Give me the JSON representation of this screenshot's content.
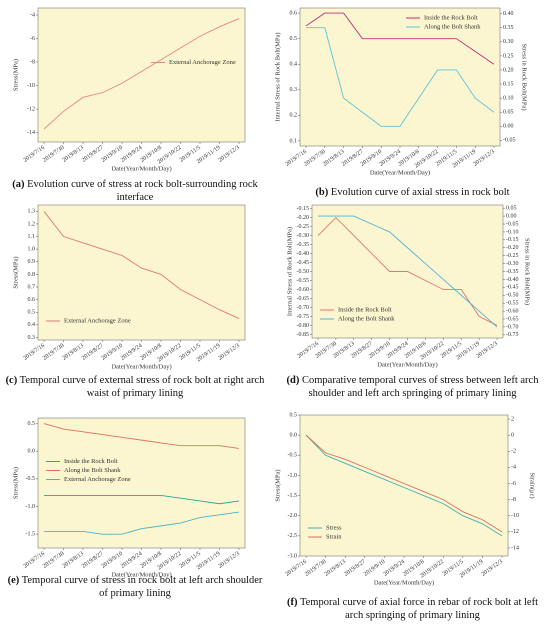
{
  "chart_data": [
    {
      "type": "line",
      "caption_label": "(a)",
      "caption": "Evolution curve of stress at rock bolt-surrounding rock interface",
      "x_label": "Date(Year/Month/Day)",
      "y_label": "Stress(MPa)",
      "categories": [
        "2019/7/16",
        "2019/7/30",
        "2019/8/13",
        "2019/8/27",
        "2019/9/10",
        "2019/9/24",
        "2019/10/8",
        "2019/10/22",
        "2019/11/5",
        "2019/11/19",
        "2019/12/3"
      ],
      "series": [
        {
          "name": "External Anchorage Zone",
          "color": "#e8877a",
          "values": [
            -13.7,
            -12.2,
            -11.0,
            -10.6,
            -9.8,
            -8.8,
            -7.8,
            -6.8,
            -5.8,
            -5.0,
            -4.3
          ]
        }
      ],
      "ylim": [
        -14.8,
        -3.4
      ],
      "yticks": [
        -14,
        -12,
        -10,
        -8,
        -6,
        -4
      ],
      "legend": "center right"
    },
    {
      "type": "line",
      "caption_label": "(b)",
      "caption": "Evolution curve of axial stress in rock bolt",
      "x_label": "Date(Year/Month/Day)",
      "y_label": "Internal Stress of Rock Bolt(MPa)",
      "y2_label": "Stress in Rock Bolt(MPa)",
      "categories": [
        "2019/7/16",
        "2019/7/30",
        "2019/8/13",
        "2019/8/27",
        "2019/9/10",
        "2019/9/24",
        "2019/10/8",
        "2019/10/22",
        "2019/11/5",
        "2019/11/19",
        "2019/12/3"
      ],
      "series": [
        {
          "name": "Inside the Rock Bolt",
          "color": "#c2307a",
          "values": [
            0.55,
            0.6,
            0.6,
            0.5,
            0.5,
            0.5,
            0.5,
            0.5,
            0.5,
            0.45,
            0.4
          ]
        },
        {
          "name": "Along the Bolt Shank",
          "color": "#5ec3dc",
          "axis": "y2",
          "values": [
            0.35,
            0.35,
            0.1,
            0.05,
            0.0,
            0.0,
            0.1,
            0.2,
            0.2,
            0.1,
            0.05
          ]
        }
      ],
      "ylim": [
        0.08,
        0.62
      ],
      "yticks": [
        0.1,
        0.2,
        0.3,
        0.4,
        0.5,
        0.6
      ],
      "y2lim": [
        -0.07,
        0.42
      ],
      "y2ticks": [
        -0.05,
        {
          "value": 0,
          "label": "0.00"
        },
        0.05,
        {
          "value": 0.1,
          "label": "0.10"
        },
        0.15,
        {
          "value": 0.2,
          "label": "0.20"
        },
        0.25,
        {
          "value": 0.3,
          "label": "0.30"
        },
        0.35,
        {
          "value": 0.4,
          "label": "0.40"
        }
      ],
      "legend": "upper right"
    },
    {
      "type": "line",
      "caption_label": "(c)",
      "caption": "Temporal curve of external stress of rock bolt at right arch waist of primary lining",
      "x_label": "Date(Year/Month/Day)",
      "y_label": "Stress(MPa)",
      "categories": [
        "2019/7/16",
        "2019/7/30",
        "2019/8/13",
        "2019/8/27",
        "2019/9/10",
        "2019/9/24",
        "2019/10/8",
        "2019/10/22",
        "2019/11/5",
        "2019/11/19",
        "2019/12/3"
      ],
      "series": [
        {
          "name": "External Anchorage Zone",
          "color": "#e27a6e",
          "values": [
            1.3,
            1.1,
            1.05,
            1.0,
            0.95,
            0.85,
            0.8,
            0.68,
            0.6,
            0.52,
            0.45
          ]
        }
      ],
      "ylim": [
        0.28,
        1.35
      ],
      "yticks": [
        0.3,
        0.4,
        0.5,
        0.6,
        0.7,
        0.8,
        0.9,
        {
          "value": 1,
          "label": "1.0"
        },
        1.1,
        1.2,
        1.3
      ],
      "legend": "lower left"
    },
    {
      "type": "line",
      "caption_label": "(d)",
      "caption": "Comparative temporal curves of stress between left arch shoulder and left arch springing of primary lining",
      "x_label": "Date(Year/Month/Day)",
      "y_label": "Internal Stress of Rock Bolt(MPa)",
      "y2_label": "Stress in Rock Bolt(MPa)",
      "categories": [
        "2019/7/16",
        "2019/7/30",
        "2019/8/13",
        "2019/8/27",
        "2019/9/10",
        "2019/9/24",
        "2019/10/8",
        "2019/10/22",
        "2019/11/5",
        "2019/11/19",
        "2019/12/3"
      ],
      "series": [
        {
          "name": "Inside the Rock Bolt",
          "color": "#e8736a",
          "values": [
            -0.3,
            -0.2,
            -0.3,
            -0.4,
            -0.5,
            -0.5,
            -0.55,
            -0.6,
            -0.6,
            -0.75,
            -0.8
          ]
        },
        {
          "name": "Along the Bolt Shank",
          "color": "#4fb3d9",
          "axis": "y2",
          "values": [
            0.0,
            0.0,
            0.0,
            -0.05,
            -0.1,
            -0.2,
            -0.3,
            -0.4,
            -0.5,
            -0.6,
            -0.7
          ]
        }
      ],
      "ylim": [
        -0.87,
        -0.13
      ],
      "yticks": [
        -0.85,
        {
          "value": -0.8,
          "label": "-0.80"
        },
        -0.75,
        {
          "value": -0.7,
          "label": "-0.70"
        },
        -0.65,
        {
          "value": -0.6,
          "label": "-0.60"
        },
        -0.55,
        {
          "value": -0.5,
          "label": "-0.50"
        },
        -0.45,
        {
          "value": -0.4,
          "label": "-0.40"
        },
        -0.35,
        {
          "value": -0.3,
          "label": "-0.30"
        },
        -0.25,
        {
          "value": -0.2,
          "label": "-0.20"
        },
        -0.15
      ],
      "y2lim": [
        -0.77,
        0.07
      ],
      "y2ticks": [
        -0.75,
        {
          "value": -0.7,
          "label": "-0.70"
        },
        -0.65,
        {
          "value": -0.6,
          "label": "-0.60"
        },
        -0.55,
        {
          "value": -0.5,
          "label": "-0.50"
        },
        -0.45,
        {
          "value": -0.4,
          "label": "-0.40"
        },
        -0.35,
        {
          "value": -0.3,
          "label": "-0.30"
        },
        -0.25,
        {
          "value": -0.2,
          "label": "-0.20"
        },
        -0.15,
        {
          "value": -0.1,
          "label": "-0.10"
        },
        -0.05,
        {
          "value": 0,
          "label": "0.00"
        },
        0.05
      ],
      "legend": "lower left"
    },
    {
      "type": "line",
      "caption_label": "(e)",
      "caption": "Temporal curve of stress in rock bolt at left arch shoulder of primary lining",
      "x_label": "Date(Year/Month/Day)",
      "y_label": "Stress(MPa)",
      "categories": [
        "2019/7/16",
        "2019/7/30",
        "2019/8/13",
        "2019/8/27",
        "2019/9/10",
        "2019/9/24",
        "2019/10/8",
        "2019/10/22",
        "2019/11/5",
        "2019/11/19",
        "2019/12/3"
      ],
      "series": [
        {
          "name": "Inside the Rock Bolt",
          "color": "#26a69a",
          "values": [
            -0.8,
            -0.8,
            -0.8,
            -0.8,
            -0.8,
            -0.8,
            -0.8,
            -0.85,
            -0.9,
            -0.95,
            -0.9
          ]
        },
        {
          "name": "Along the Bolt Shank",
          "color": "#e0705f",
          "values": [
            0.5,
            0.4,
            0.35,
            0.3,
            0.25,
            0.2,
            0.15,
            0.1,
            0.1,
            0.1,
            0.05
          ]
        },
        {
          "name": "External Anchorage Zone",
          "color": "#4fb0c6",
          "values": [
            -1.45,
            -1.45,
            -1.45,
            -1.5,
            -1.5,
            -1.4,
            -1.35,
            -1.3,
            -1.2,
            -1.15,
            -1.1
          ]
        }
      ],
      "ylim": [
        -1.75,
        0.6
      ],
      "yticks": [
        -1.5,
        {
          "value": -1,
          "label": "-1.0"
        },
        -0.5,
        {
          "value": 0,
          "label": "0.0"
        },
        0.5
      ],
      "legend": "center left"
    },
    {
      "type": "line",
      "caption_label": "(f)",
      "caption": "Temporal curve of axial force in rebar of rock bolt at left arch springing of primary lining",
      "x_label": "Date(Year/Month/Day)",
      "y_label": "Stress(MPa)",
      "y2_label": "Strain(με)",
      "categories": [
        "2019/7/16",
        "2019/7/30",
        "2019/8/13",
        "2019/8/27",
        "2019/9/10",
        "2019/9/24",
        "2019/10/8",
        "2019/10/22",
        "2019/11/5",
        "2019/11/19",
        "2019/12/3"
      ],
      "series": [
        {
          "name": "Stress",
          "color": "#3fb0b8",
          "values": [
            0.0,
            -0.5,
            -0.7,
            -0.9,
            -1.1,
            -1.3,
            -1.5,
            -1.7,
            -2.0,
            -2.2,
            -2.5
          ]
        },
        {
          "name": "Strain",
          "color": "#d9705e",
          "axis": "y2",
          "values": [
            0,
            -2.2,
            -3,
            -4,
            -5,
            -6,
            -7,
            -8,
            -9.5,
            -10.5,
            -12
          ]
        }
      ],
      "ylim": [
        -3,
        0.5
      ],
      "yticks": [
        0.5,
        {
          "value": 0,
          "label": "0.0"
        },
        -0.5,
        {
          "value": -1,
          "label": "-1.0"
        },
        -1.5,
        {
          "value": -2,
          "label": "-2.0"
        },
        -2.5,
        {
          "value": -3,
          "label": "-3.0"
        }
      ],
      "y2lim": [
        -15,
        2.5
      ],
      "y2ticks": [
        2,
        0,
        -2,
        -4,
        -6,
        -8,
        -10,
        -12,
        -14
      ],
      "legend": "lower left"
    }
  ]
}
